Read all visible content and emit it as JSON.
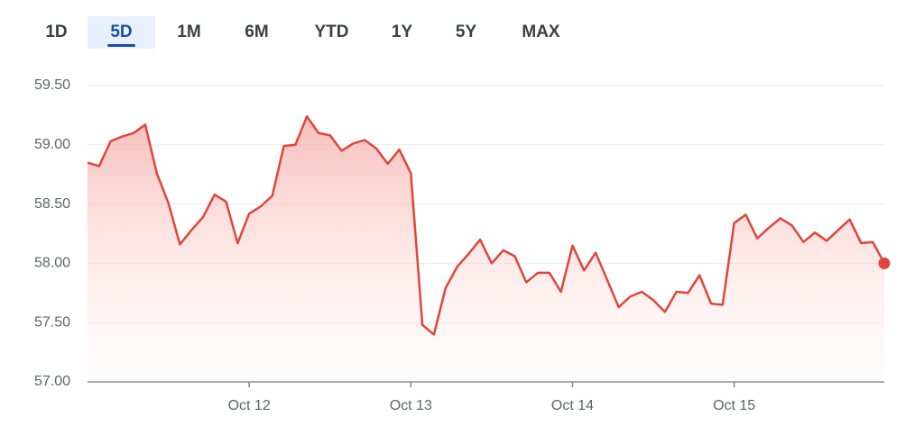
{
  "tabs": [
    {
      "label": "1D",
      "selected": false
    },
    {
      "label": "5D",
      "selected": true
    },
    {
      "label": "1M",
      "selected": false
    },
    {
      "label": "6M",
      "selected": false
    },
    {
      "label": "YTD",
      "selected": false
    },
    {
      "label": "1Y",
      "selected": false
    },
    {
      "label": "5Y",
      "selected": false
    },
    {
      "label": "MAX",
      "selected": false
    }
  ],
  "chart_data": {
    "type": "line",
    "color": "#e0453a",
    "grid": true,
    "area": true,
    "end_marker": true,
    "categories": [
      null,
      null,
      null,
      null,
      null,
      null,
      null,
      null,
      null,
      null,
      null,
      null,
      null,
      null,
      "Oct 12",
      null,
      null,
      null,
      null,
      null,
      null,
      null,
      null,
      null,
      null,
      null,
      null,
      null,
      "Oct 13",
      null,
      null,
      null,
      null,
      null,
      null,
      null,
      null,
      null,
      null,
      null,
      null,
      null,
      "Oct 14",
      null,
      null,
      null,
      null,
      null,
      null,
      null,
      null,
      null,
      null,
      null,
      null,
      null,
      "Oct 15",
      null,
      null,
      null,
      null,
      null,
      null,
      null,
      null,
      null,
      null,
      null,
      null,
      null
    ],
    "values": [
      58.85,
      58.82,
      59.03,
      59.07,
      59.1,
      59.17,
      58.76,
      58.51,
      58.16,
      58.28,
      58.39,
      58.58,
      58.52,
      58.17,
      58.42,
      58.48,
      58.57,
      58.99,
      59.0,
      59.24,
      59.1,
      59.08,
      58.95,
      59.01,
      59.04,
      58.97,
      58.84,
      58.96,
      58.76,
      57.48,
      57.4,
      57.79,
      57.97,
      58.08,
      58.2,
      58.0,
      58.11,
      58.06,
      57.84,
      57.92,
      57.92,
      57.76,
      58.15,
      57.94,
      58.09,
      57.86,
      57.63,
      57.72,
      57.76,
      57.69,
      57.59,
      57.76,
      57.75,
      57.9,
      57.66,
      57.65,
      58.34,
      58.41,
      58.21,
      58.3,
      58.38,
      58.32,
      58.18,
      58.26,
      58.19,
      58.28,
      58.37,
      58.17,
      58.18,
      58.0
    ],
    "ylim": [
      57,
      59.5
    ],
    "yticks": [
      {
        "value": 57,
        "label": "57.00"
      },
      {
        "value": 57.5,
        "label": "57.50"
      },
      {
        "value": 58,
        "label": "58.00"
      },
      {
        "value": 58.5,
        "label": "58.50"
      },
      {
        "value": 59,
        "label": "59.00"
      },
      {
        "value": 59.5,
        "label": "59.50"
      }
    ]
  }
}
